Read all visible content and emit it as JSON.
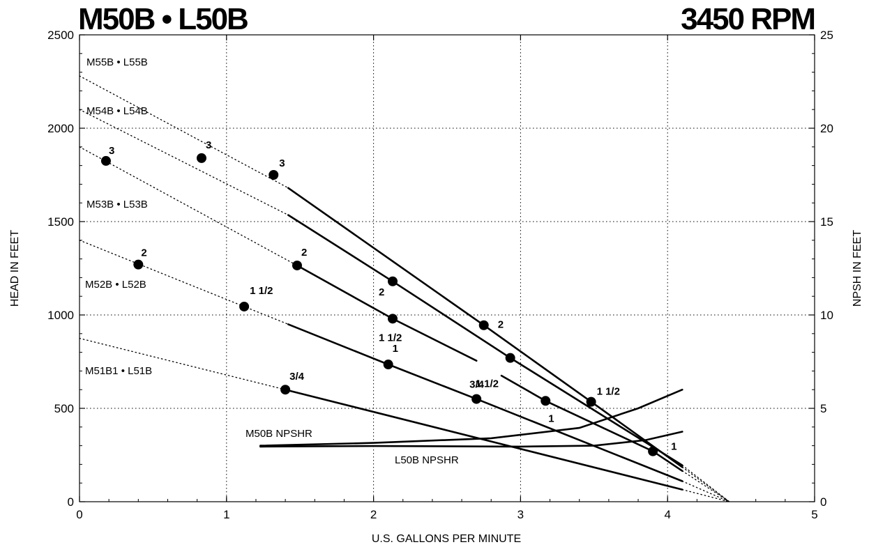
{
  "title_left": "M50B • L50B",
  "title_right": "3450 RPM",
  "chart_data": {
    "type": "line",
    "xlabel": "U.S. GALLONS PER MINUTE",
    "ylabel": "HEAD IN FEET",
    "y2label": "NPSH IN FEET",
    "xlim": [
      0,
      5
    ],
    "ylim": [
      0,
      2500
    ],
    "y2lim": [
      0,
      25
    ],
    "xticks": [
      "0",
      "1",
      "2",
      "3",
      "4",
      "5"
    ],
    "yticks": [
      "0",
      "500",
      "1000",
      "1500",
      "2000",
      "2500"
    ],
    "y2ticks": [
      "0",
      "5",
      "10",
      "15",
      "20",
      "25"
    ],
    "grid": true,
    "series": [
      {
        "name": "M55B • L55B",
        "shutoff_head": 2280,
        "solid": [
          [
            1.42,
            1680
          ],
          [
            2.75,
            945
          ],
          [
            3.48,
            535
          ],
          [
            4.1,
            185
          ]
        ],
        "points": [
          {
            "x": 1.32,
            "y": 1750,
            "label": "3"
          },
          {
            "x": 2.75,
            "y": 945,
            "label": "2"
          },
          {
            "x": 3.48,
            "y": 535,
            "label": "1 1/2"
          }
        ]
      },
      {
        "name": "M54B • L54B",
        "shutoff_head": 2100,
        "solid": [
          [
            1.42,
            1535
          ],
          [
            2.13,
            1180
          ],
          [
            2.93,
            770
          ],
          [
            4.1,
            195
          ]
        ],
        "points": [
          {
            "x": 0.83,
            "y": 1840,
            "label": "3"
          },
          {
            "x": 2.13,
            "y": 1180,
            "label": "2"
          },
          {
            "x": 2.93,
            "y": 770,
            "label": "1 1/2"
          }
        ]
      },
      {
        "name": "M53B • L53B",
        "shutoff_head": 1900,
        "solid": [
          [
            1.48,
            1265
          ],
          [
            2.13,
            980
          ],
          [
            2.7,
            755
          ]
        ],
        "solid2": [
          [
            2.87,
            675
          ],
          [
            3.17,
            540
          ],
          [
            3.9,
            270
          ],
          [
            4.1,
            165
          ]
        ],
        "points": [
          {
            "x": 0.18,
            "y": 1825,
            "label": "3"
          },
          {
            "x": 1.48,
            "y": 1265,
            "label": "2"
          },
          {
            "x": 2.13,
            "y": 980,
            "label": "1 1/2"
          },
          {
            "x": 3.17,
            "y": 540,
            "label": "1"
          },
          {
            "x": 3.9,
            "y": 270,
            "label": "1"
          }
        ]
      },
      {
        "name": "M52B • L52B",
        "shutoff_head": 1400,
        "solid": [
          [
            1.42,
            950
          ],
          [
            2.1,
            735
          ],
          [
            2.7,
            550
          ],
          [
            4.1,
            110
          ]
        ],
        "points": [
          {
            "x": 0.4,
            "y": 1270,
            "label": "2"
          },
          {
            "x": 1.12,
            "y": 1045,
            "label": "1 1/2"
          },
          {
            "x": 2.1,
            "y": 735,
            "label": "1"
          },
          {
            "x": 2.7,
            "y": 550,
            "label": "3/4"
          }
        ]
      },
      {
        "name": "M51B1 • L51B",
        "shutoff_head": 875,
        "solid": [
          [
            1.4,
            600
          ],
          [
            4.1,
            65
          ]
        ],
        "points": [
          {
            "x": 1.4,
            "y": 600,
            "label": "3/4"
          }
        ]
      },
      {
        "name": "M50B  NPSHR",
        "axis": "right",
        "values": [
          [
            1.23,
            3.0
          ],
          [
            2.0,
            3.15
          ],
          [
            2.8,
            3.4
          ],
          [
            3.4,
            3.95
          ],
          [
            3.8,
            5.0
          ],
          [
            4.1,
            6.0
          ]
        ]
      },
      {
        "name": "L50B  NPSHR",
        "axis": "right",
        "values": [
          [
            1.23,
            2.95
          ],
          [
            2.0,
            2.98
          ],
          [
            3.0,
            2.95
          ],
          [
            3.5,
            3.0
          ],
          [
            3.85,
            3.3
          ],
          [
            4.1,
            3.75
          ]
        ]
      }
    ]
  }
}
